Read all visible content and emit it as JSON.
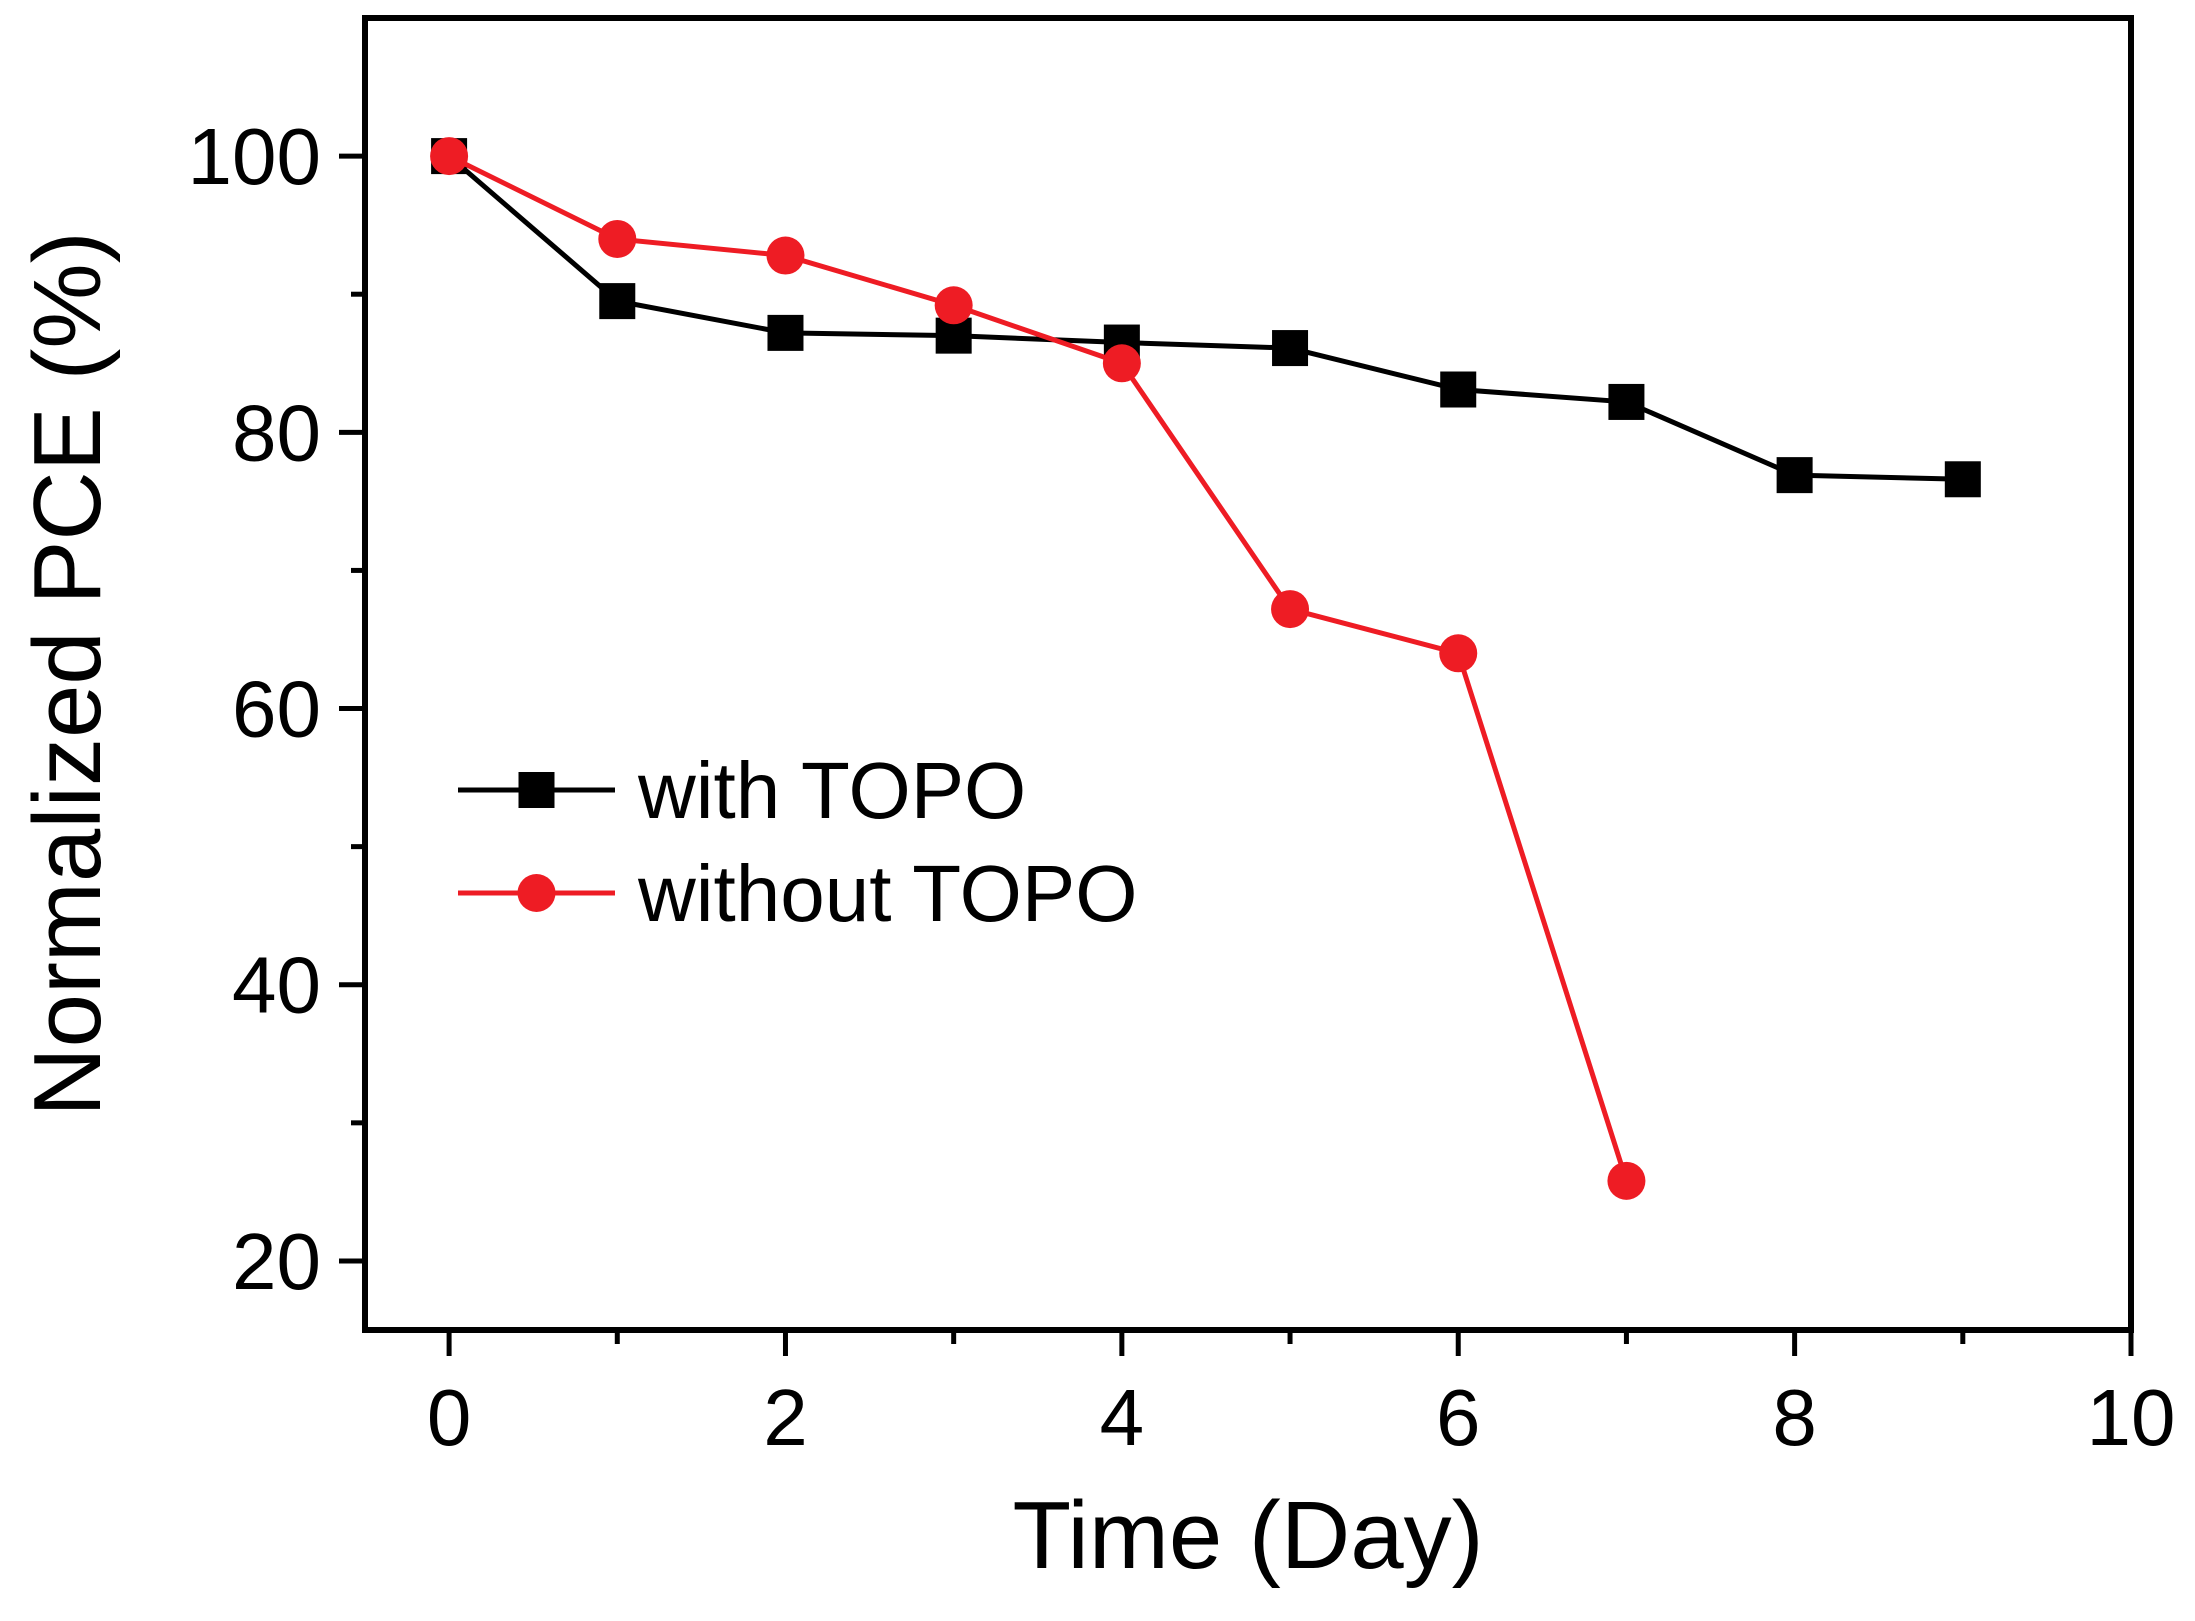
{
  "chart_data": {
    "type": "line",
    "xlabel": "Time (Day)",
    "ylabel": "Normalized PCE (%)",
    "xlim": [
      -0.5,
      10
    ],
    "ylim": [
      15,
      110
    ],
    "x_ticks": [
      0,
      2,
      4,
      6,
      8,
      10
    ],
    "x_tick_labels": [
      "0",
      "2",
      "4",
      "6",
      "8",
      "10"
    ],
    "x_minor_ticks": [
      1,
      3,
      5,
      7,
      9
    ],
    "y_ticks": [
      20,
      40,
      60,
      80,
      100
    ],
    "y_tick_labels": [
      "20",
      "40",
      "60",
      "80",
      "100"
    ],
    "y_minor_ticks": [
      30,
      50,
      70,
      90
    ],
    "grid": false,
    "legend_position": "center-left",
    "series": [
      {
        "name": "with TOPO",
        "color": "#000000",
        "marker": "square",
        "x": [
          0,
          1,
          2,
          3,
          4,
          5,
          6,
          7,
          8,
          9
        ],
        "y": [
          100,
          89.5,
          87.2,
          87.0,
          86.5,
          86.1,
          83.1,
          82.2,
          76.9,
          76.6
        ]
      },
      {
        "name": "without TOPO",
        "color": "#ee1c24",
        "marker": "circle",
        "x": [
          0,
          1,
          2,
          3,
          4,
          5,
          6,
          7
        ],
        "y": [
          100,
          94.0,
          92.8,
          89.2,
          85.0,
          67.2,
          64.0,
          25.8
        ]
      }
    ]
  }
}
